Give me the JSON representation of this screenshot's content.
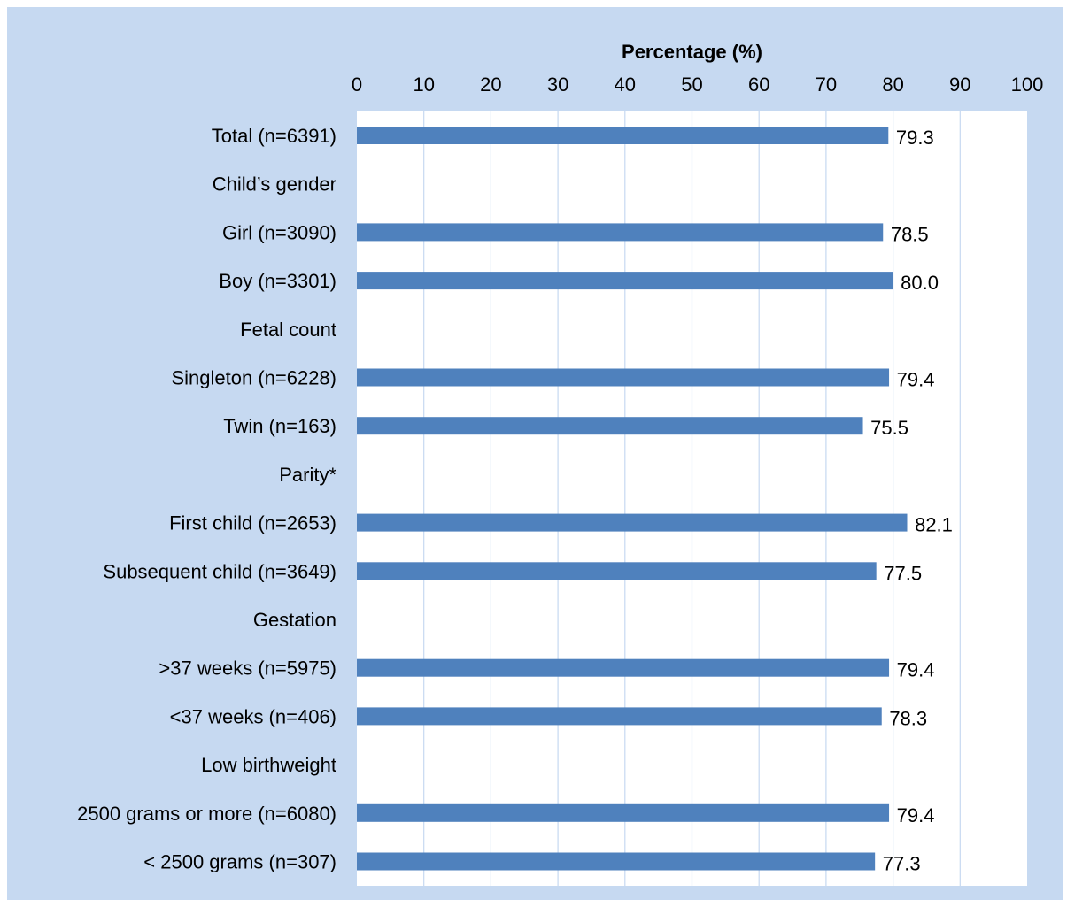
{
  "chart_data": {
    "type": "bar",
    "orientation": "horizontal",
    "xlabel": "Percentage (%)",
    "ylabel": "",
    "title": "",
    "xlim": [
      0,
      100
    ],
    "x_ticks": [
      0,
      10,
      20,
      30,
      40,
      50,
      60,
      70,
      80,
      90,
      100
    ],
    "x_tick_labels": [
      "0",
      "10",
      "20",
      "30",
      "40",
      "50",
      "60",
      "70",
      "80",
      "90",
      "100"
    ],
    "axis_position": "top",
    "grid": true,
    "legend": "none",
    "categories": [
      "Total (n=6391)",
      "Child’s gender",
      "Girl (n=3090)",
      "Boy (n=3301)",
      "Fetal count",
      "Singleton (n=6228)",
      "Twin (n=163)",
      "Parity*",
      "First child (n=2653)",
      "Subsequent child (n=3649)",
      "Gestation",
      ">37 weeks (n=5975)",
      "<37 weeks (n=406)",
      "Low birthweight",
      "2500 grams or more (n=6080)",
      "< 2500 grams (n=307)"
    ],
    "values": [
      79.3,
      null,
      78.5,
      80.0,
      null,
      79.4,
      75.5,
      null,
      82.1,
      77.5,
      null,
      79.4,
      78.3,
      null,
      79.4,
      77.3
    ],
    "data_labels": [
      "79.3",
      "",
      "78.5",
      "80.0",
      "",
      "79.4",
      "75.5",
      "",
      "82.1",
      "77.5",
      "",
      "79.4",
      "78.3",
      "",
      "79.4",
      "77.3"
    ],
    "colors": {
      "background": "#c6d9f1",
      "plot_area": "#ffffff",
      "bar": "#4f81bd",
      "gridline": "#c6d9f1",
      "text": "#000000"
    }
  }
}
